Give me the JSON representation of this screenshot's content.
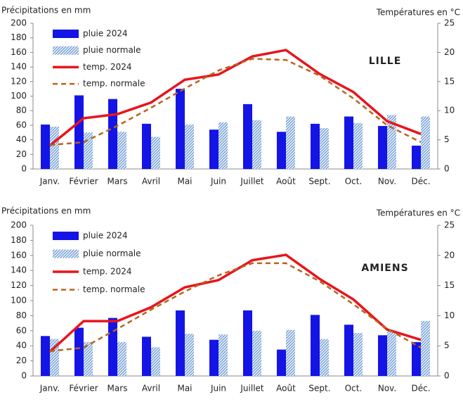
{
  "chart_data": [
    {
      "type": "combo",
      "title": "LILLE",
      "y_label": "Précipitations en mm",
      "y2_label": "Températures en °C",
      "categories": [
        "Janv.",
        "Février",
        "Mars",
        "Avril",
        "Mai",
        "Juin",
        "Juillet",
        "Août",
        "Sept.",
        "Oct.",
        "Nov.",
        "Déc."
      ],
      "ylim": [
        0,
        200
      ],
      "yticks": [
        0,
        20,
        40,
        60,
        80,
        100,
        120,
        140,
        160,
        180,
        200
      ],
      "y2lim": [
        0,
        25
      ],
      "y2ticks": [
        0,
        5,
        10,
        15,
        20,
        25
      ],
      "legend": "upper left",
      "series": [
        {
          "name": "pluie 2024",
          "type": "bar",
          "color": "#1414e6",
          "values": [
            61,
            101,
            96,
            62,
            110,
            54,
            89,
            51,
            62,
            72,
            59,
            32
          ]
        },
        {
          "name": "pluie normale",
          "type": "bar",
          "pattern": "hatch",
          "color": "#7aa4d8",
          "values": [
            58,
            50,
            51,
            44,
            61,
            64,
            67,
            72,
            56,
            63,
            74,
            72
          ]
        },
        {
          "name": "temp. 2024",
          "type": "line",
          "axis": "y2",
          "color": "#e8141c",
          "values": [
            4.0,
            8.7,
            9.4,
            11.4,
            15.3,
            16.2,
            19.3,
            20.4,
            16.3,
            13.2,
            8.2,
            6.0
          ]
        },
        {
          "name": "temp. normale",
          "type": "line",
          "dash": true,
          "axis": "y2",
          "color": "#b8651b",
          "values": [
            4.1,
            4.6,
            7.4,
            10.5,
            13.8,
            16.9,
            18.9,
            18.7,
            16.0,
            12.1,
            7.5,
            4.6
          ]
        }
      ]
    },
    {
      "type": "combo",
      "title": "AMIENS",
      "y_label": "Précipitations en mm",
      "y2_label": "Températures en °C",
      "categories": [
        "Janv.",
        "Février",
        "Mars",
        "Avril",
        "Mai",
        "Juin",
        "Juillet",
        "Août",
        "Sept.",
        "Oct.",
        "Nov.",
        "Déc."
      ],
      "ylim": [
        0,
        200
      ],
      "yticks": [
        0,
        20,
        40,
        60,
        80,
        100,
        120,
        140,
        160,
        180,
        200
      ],
      "y2lim": [
        0,
        25
      ],
      "y2ticks": [
        0,
        5,
        10,
        15,
        20,
        25
      ],
      "legend": "upper left",
      "series": [
        {
          "name": "pluie 2024",
          "type": "bar",
          "color": "#1414e6",
          "values": [
            53,
            64,
            77,
            52,
            87,
            48,
            87,
            35,
            81,
            68,
            54,
            45
          ]
        },
        {
          "name": "pluie normale",
          "type": "bar",
          "pattern": "hatch",
          "color": "#7aa4d8",
          "values": [
            49,
            45,
            45,
            38,
            56,
            55,
            60,
            61,
            49,
            57,
            60,
            73
          ]
        },
        {
          "name": "temp. 2024",
          "type": "line",
          "axis": "y2",
          "color": "#e8141c",
          "values": [
            4.0,
            9.1,
            9.1,
            11.4,
            14.7,
            15.9,
            19.2,
            20.1,
            16.1,
            12.7,
            7.7,
            6.0
          ]
        },
        {
          "name": "temp. normale",
          "type": "line",
          "dash": true,
          "axis": "y2",
          "color": "#b8651b",
          "values": [
            4.1,
            4.7,
            7.8,
            11.0,
            14.0,
            16.7,
            18.7,
            18.7,
            15.7,
            11.9,
            7.8,
            4.7
          ]
        }
      ]
    }
  ]
}
